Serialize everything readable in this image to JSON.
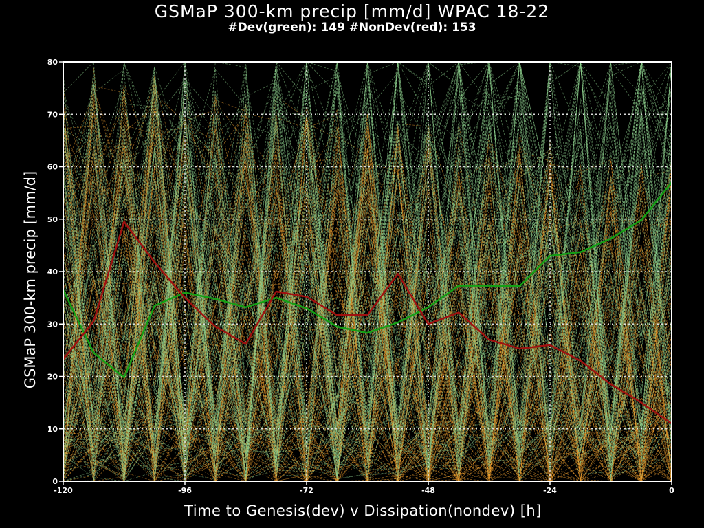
{
  "chart_data": {
    "type": "line",
    "title": "GSMaP 300-km precip [mm/d] WPAC 18-22",
    "subtitle": "#Dev(green): 149 #NonDev(red): 153",
    "xlabel": "Time to Genesis(dev) v Dissipation(nondev) [h]",
    "ylabel": "GSMaP 300-km precip [mm/d]",
    "xlim": [
      -120,
      0
    ],
    "ylim": [
      0,
      80
    ],
    "xticks": [
      -120,
      -96,
      -72,
      -48,
      -24,
      0
    ],
    "yticks": [
      0,
      10,
      20,
      30,
      40,
      50,
      60,
      70,
      80
    ],
    "grid": true,
    "x": [
      -120,
      -114,
      -108,
      -102,
      -96,
      -90,
      -84,
      -78,
      -72,
      -66,
      -60,
      -54,
      -48,
      -42,
      -36,
      -30,
      -24,
      -18,
      -12,
      -6,
      0
    ],
    "series": [
      {
        "name": "Dev",
        "color": "#14a014",
        "values": [
          36.5,
          24.5,
          19.8,
          33.5,
          36.0,
          34.8,
          33.2,
          35.0,
          33.0,
          29.5,
          28.3,
          30.3,
          33.2,
          37.3,
          37.3,
          37.2,
          43.0,
          43.7,
          46.3,
          49.8,
          57.0
        ]
      },
      {
        "name": "NonDev",
        "color": "#a01010",
        "values": [
          23.3,
          30.5,
          49.5,
          41.8,
          35.0,
          29.5,
          26.2,
          36.2,
          35.2,
          31.7,
          31.7,
          39.6,
          30.0,
          32.2,
          27.0,
          25.3,
          26.0,
          23.0,
          18.5,
          15.0,
          11.0
        ]
      }
    ],
    "background_ensemble": {
      "dev_color": "#8fd48f",
      "nondev_color": "#f0a030",
      "dev_count": 149,
      "nondev_count": 153
    }
  }
}
